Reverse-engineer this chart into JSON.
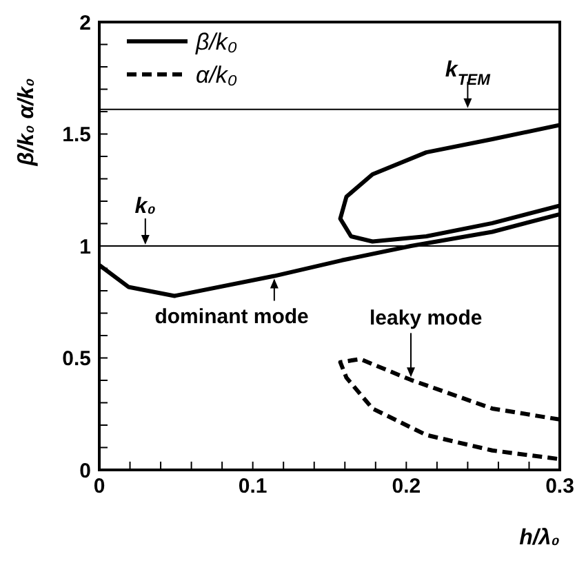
{
  "chart_data": {
    "type": "line",
    "xlabel": "h/λ₀",
    "ylabel": "β/k₀  α/k₀",
    "xlim": [
      0,
      0.3
    ],
    "ylim": [
      0,
      2
    ],
    "xticks": [
      0,
      {
        "value": 0.02,
        "label": null
      },
      {
        "value": 0.04,
        "label": null
      },
      {
        "value": 0.06,
        "label": null
      },
      {
        "value": 0.08,
        "label": null
      },
      0.1,
      {
        "value": 0.12,
        "label": null
      },
      {
        "value": 0.14,
        "label": null
      },
      {
        "value": 0.16,
        "label": null
      },
      {
        "value": 0.18,
        "label": null
      },
      0.2,
      {
        "value": 0.22,
        "label": null
      },
      {
        "value": 0.24,
        "label": null
      },
      {
        "value": 0.26,
        "label": null
      },
      {
        "value": 0.28,
        "label": null
      },
      0.3
    ],
    "yticks": [
      0,
      {
        "value": 0.1,
        "label": null
      },
      {
        "value": 0.2,
        "label": null
      },
      {
        "value": 0.3,
        "label": null
      },
      {
        "value": 0.4,
        "label": null
      },
      0.5,
      {
        "value": 0.6,
        "label": null
      },
      {
        "value": 0.7,
        "label": null
      },
      {
        "value": 0.8,
        "label": null
      },
      {
        "value": 0.9,
        "label": null
      },
      1,
      {
        "value": 1.1,
        "label": null
      },
      {
        "value": 1.2,
        "label": null
      },
      {
        "value": 1.3,
        "label": null
      },
      {
        "value": 1.4,
        "label": null
      },
      1.5,
      {
        "value": 1.6,
        "label": null
      },
      {
        "value": 1.7,
        "label": null
      },
      {
        "value": 1.8,
        "label": null
      },
      {
        "value": 1.9,
        "label": null
      },
      2
    ],
    "grid": false,
    "legend": "top left",
    "marker": "none",
    "series": [
      {
        "name": "β/k₀",
        "color": "#000000",
        "line_style": "solid",
        "x": [
          0,
          0.019,
          0.049,
          0.114,
          0.158,
          0.203,
          0.256,
          0.3
        ],
        "values": [
          0.915,
          0.817,
          0.777,
          0.866,
          0.936,
          1.0,
          1.063,
          1.142
        ]
      },
      {
        "color": "#000000",
        "line_style": "solid",
        "x": [
          0.3,
          0.256,
          0.213,
          0.178,
          0.161,
          0.157,
          0.164,
          0.178,
          0.213,
          0.256,
          0.3
        ],
        "values": [
          1.54,
          1.477,
          1.418,
          1.32,
          1.22,
          1.122,
          1.043,
          1.02,
          1.043,
          1.102,
          1.18
        ]
      },
      {
        "name": "α/k₀",
        "color": "#000000",
        "line_style": "dashed",
        "x": [
          0.3,
          0.256,
          0.203,
          0.17,
          0.157,
          0.161,
          0.178,
          0.213,
          0.256,
          0.3
        ],
        "values": [
          0.225,
          0.274,
          0.402,
          0.495,
          0.481,
          0.412,
          0.274,
          0.156,
          0.087,
          0.048
        ]
      }
    ],
    "ref_lines": [
      {
        "axis": "y",
        "value": 1,
        "label": "k₀",
        "color": "#000000"
      },
      {
        "axis": "y",
        "value": 1.61,
        "label": "k$_{TEM}$",
        "color": "#000000"
      }
    ],
    "annotations": [
      {
        "text": "dominant mode",
        "x": 0.114,
        "y": 0.866
      },
      {
        "text": "leaky mode",
        "x": 0.203,
        "y": 0.402
      }
    ]
  }
}
